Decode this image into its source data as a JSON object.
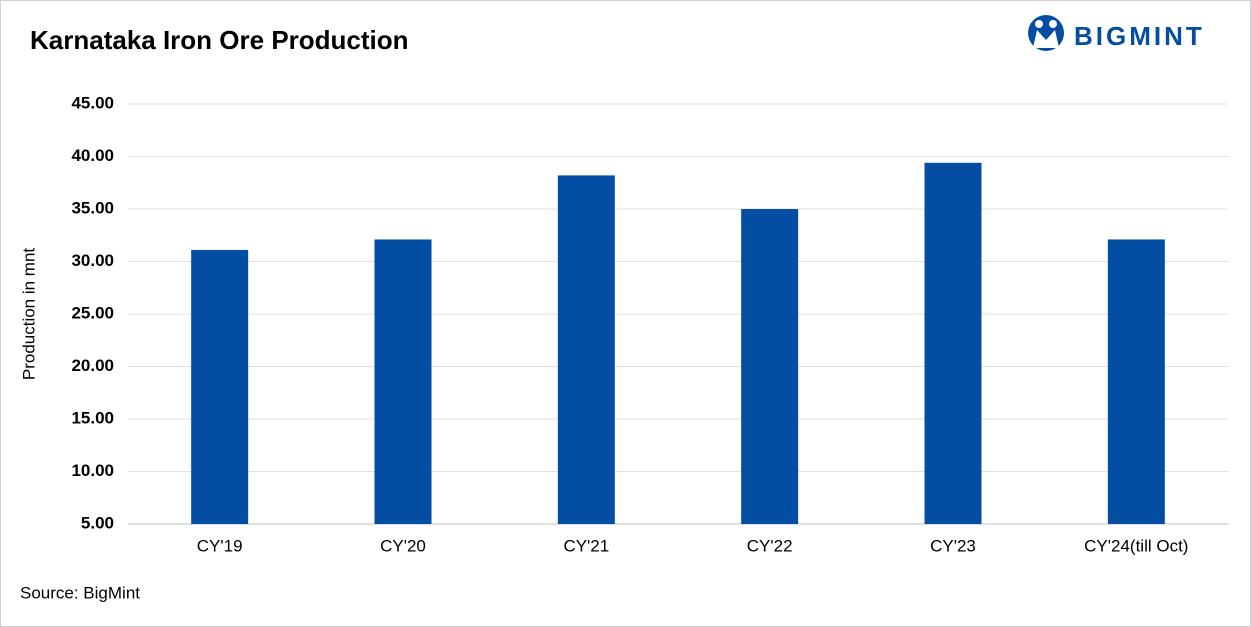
{
  "chart_data": {
    "type": "bar",
    "title": "Karnataka Iron Ore Production",
    "logo": "BIGMINT",
    "y_label": "Production in mnt",
    "source": "Source: BigMint",
    "categories": [
      "CY'19",
      "CY'20",
      "CY'21",
      "CY'22",
      "CY'23",
      "CY'24(till Oct)"
    ],
    "values": [
      31.1,
      32.1,
      38.2,
      35.0,
      39.4,
      32.1
    ],
    "color": "#034ea2",
    "ylim": [
      5,
      45
    ],
    "yticks": [
      {
        "value": 5,
        "label": "5.00"
      },
      {
        "value": 10,
        "label": "10.00"
      },
      {
        "value": 15,
        "label": "15.00"
      },
      {
        "value": 20,
        "label": "20.00"
      },
      {
        "value": 25,
        "label": "25.00"
      },
      {
        "value": 30,
        "label": "30.00"
      },
      {
        "value": 35,
        "label": "35.00"
      },
      {
        "value": 40,
        "label": "40.00"
      },
      {
        "value": 45,
        "label": "45.00"
      }
    ],
    "grid": true
  }
}
